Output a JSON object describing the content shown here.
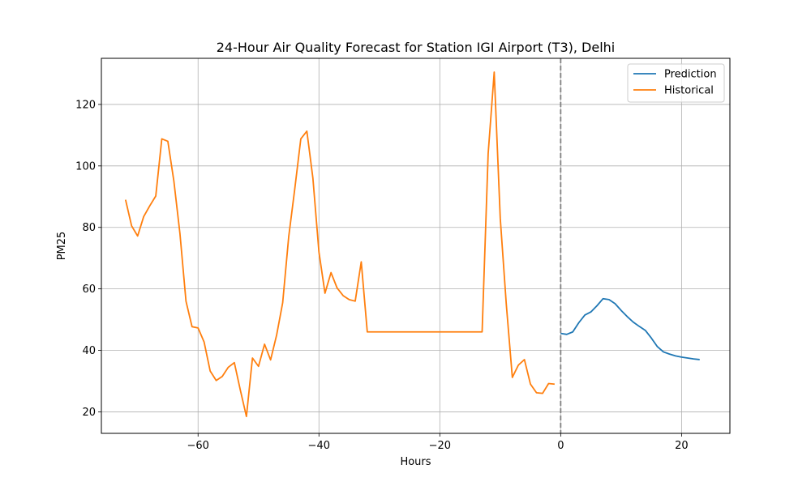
{
  "chart_data": {
    "type": "line",
    "title": "24-Hour Air Quality Forecast for Station IGI Airport (T3), Delhi",
    "xlabel": "Hours",
    "ylabel": "PM25",
    "xlim": [
      -76,
      28
    ],
    "ylim": [
      13,
      135
    ],
    "xticks": [
      -60,
      -40,
      -20,
      0,
      20
    ],
    "yticks": [
      20,
      40,
      60,
      80,
      100,
      120
    ],
    "xtick_labels": [
      "−60",
      "−40",
      "−20",
      "0",
      "20"
    ],
    "ytick_labels": [
      "20",
      "40",
      "60",
      "80",
      "100",
      "120"
    ],
    "grid": true,
    "legend_position": "top-right",
    "vline": {
      "x": 0,
      "style": "dashed",
      "color": "#808080"
    },
    "series": [
      {
        "name": "Prediction",
        "color": "#1f77b4",
        "x": [
          0,
          1,
          2,
          3,
          4,
          5,
          6,
          7,
          8,
          9,
          10,
          11,
          12,
          13,
          14,
          15,
          16,
          17,
          18,
          19,
          20,
          21,
          22,
          23
        ],
        "values": [
          45.5,
          45.2,
          46.0,
          49.0,
          51.5,
          52.5,
          54.5,
          56.8,
          56.5,
          55.2,
          53.0,
          51.0,
          49.2,
          47.8,
          46.5,
          44.0,
          41.2,
          39.5,
          38.8,
          38.2,
          37.8,
          37.5,
          37.2,
          37.0
        ]
      },
      {
        "name": "Historical",
        "color": "#ff7f0e",
        "x": [
          -72,
          -71,
          -70,
          -69,
          -68,
          -67,
          -66,
          -65,
          -64,
          -63,
          -62,
          -61,
          -60,
          -59,
          -58,
          -57,
          -56,
          -55,
          -54,
          -53,
          -52,
          -51,
          -50,
          -49,
          -48,
          -47,
          -46,
          -45,
          -44,
          -43,
          -42,
          -41,
          -40,
          -39,
          -38,
          -37,
          -36,
          -35,
          -34,
          -33,
          -32,
          -31,
          -30,
          -29,
          -28,
          -27,
          -26,
          -25,
          -24,
          -23,
          -22,
          -21,
          -20,
          -19,
          -18,
          -17,
          -16,
          -15,
          -14,
          -13,
          -12,
          -11,
          -10,
          -9,
          -8,
          -7,
          -6,
          -5,
          -4,
          -3,
          -2,
          -1
        ],
        "values": [
          89.0,
          80.5,
          77.2,
          83.5,
          87.0,
          90.2,
          108.8,
          108.0,
          95.0,
          78.0,
          56.0,
          47.7,
          47.3,
          42.7,
          33.3,
          30.2,
          31.5,
          34.5,
          36.0,
          27.0,
          18.5,
          37.5,
          34.8,
          42.0,
          36.9,
          45.0,
          55.5,
          77.0,
          92.5,
          108.8,
          111.3,
          96.0,
          72.0,
          58.6,
          65.3,
          60.3,
          57.8,
          56.5,
          56.0,
          68.8,
          46.0,
          46.0,
          46.0,
          46.0,
          46.0,
          46.0,
          46.0,
          46.0,
          46.0,
          46.0,
          46.0,
          46.0,
          46.0,
          46.0,
          46.0,
          46.0,
          46.0,
          46.0,
          46.0,
          46.0,
          104.0,
          130.5,
          83.0,
          55.0,
          31.2,
          35.2,
          37.0,
          29.0,
          26.2,
          26.0,
          29.2,
          29.0
        ]
      }
    ]
  }
}
